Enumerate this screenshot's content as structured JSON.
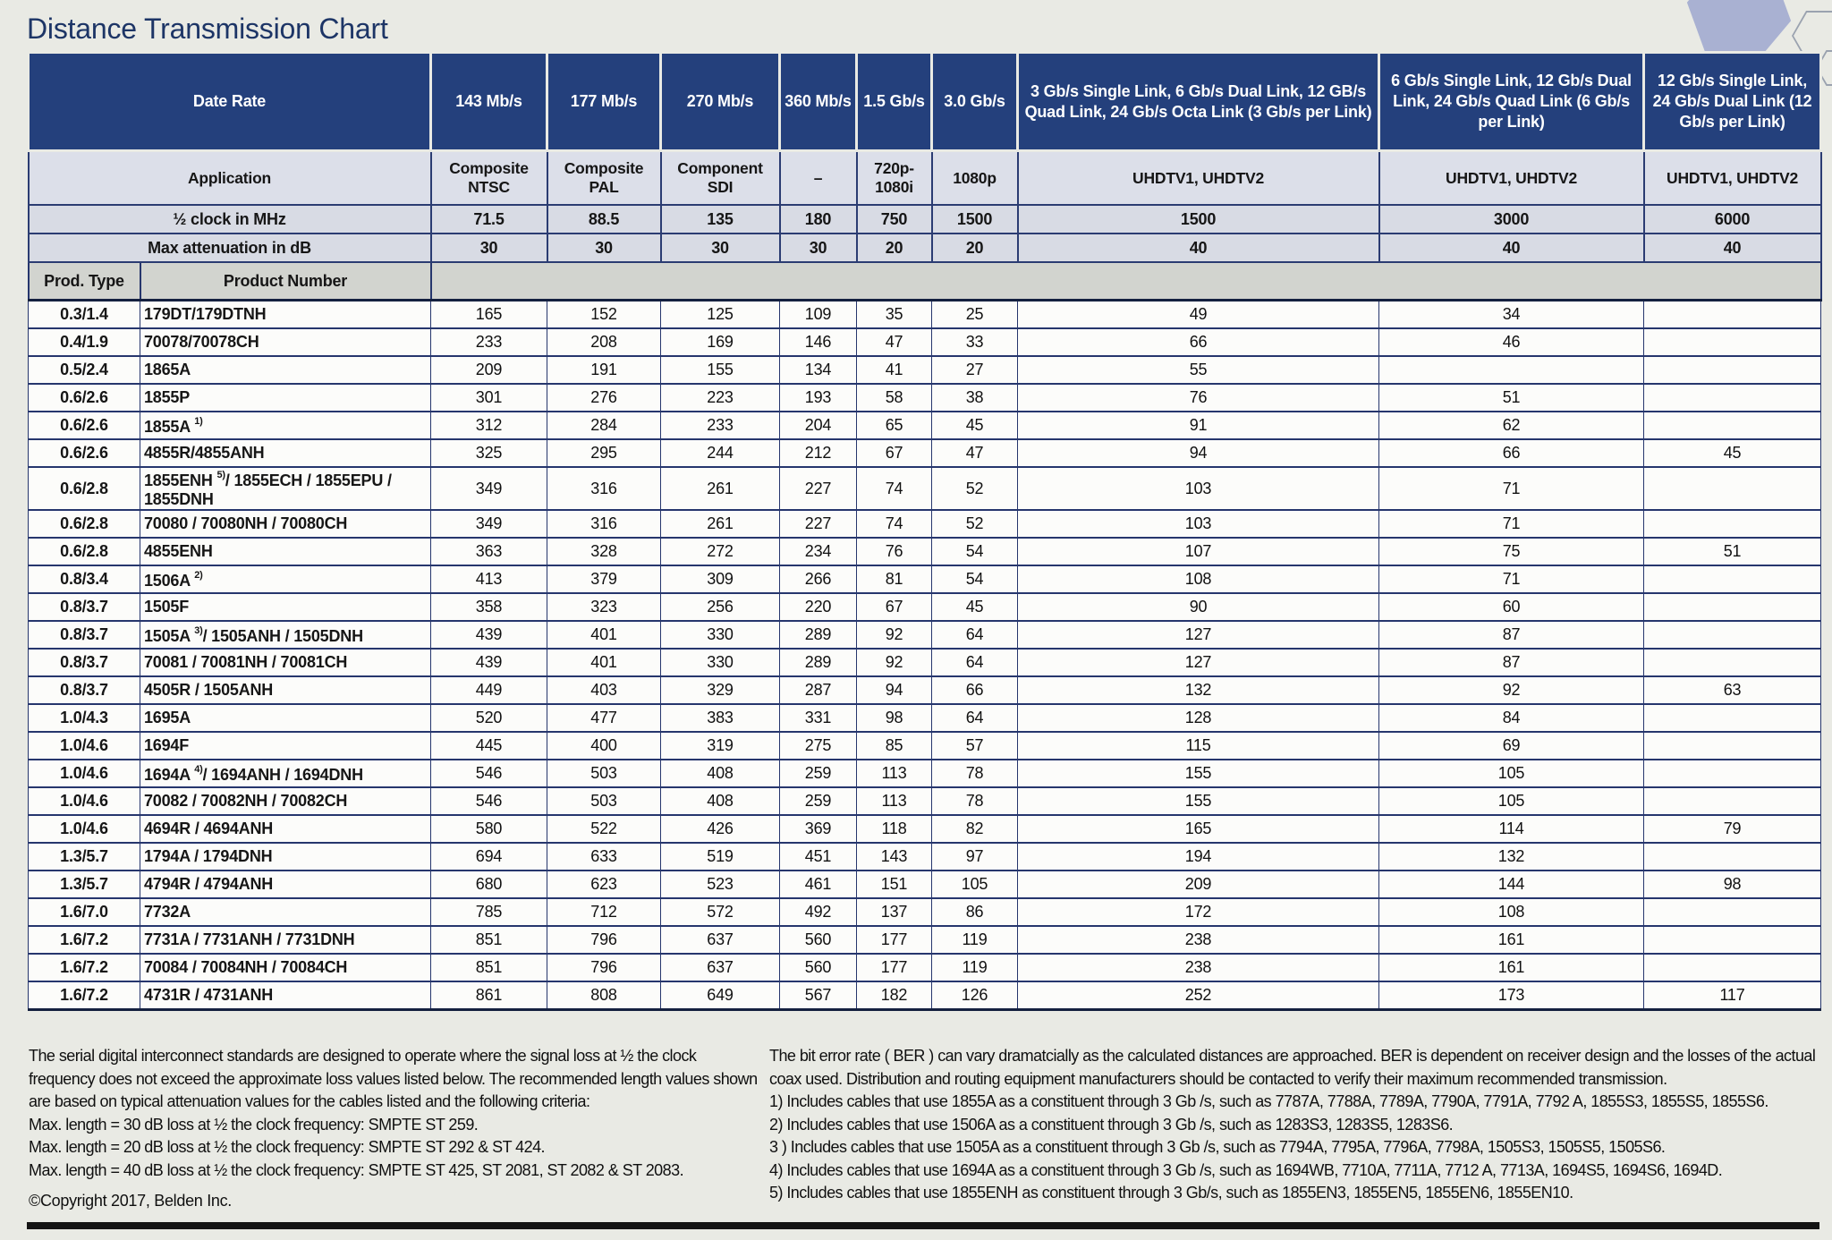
{
  "title": "Distance Transmission Chart",
  "colors": {
    "header_blue": "#24407c",
    "grid_navy": "#26366d",
    "paper": "#e9eae4",
    "app_row_bg": "#dcdfe9",
    "hexagon_fill": "#a9b1d2"
  },
  "table": {
    "header": {
      "data_rate_label": "Date Rate",
      "application_label": "Application",
      "clock_label": "½ clock in MHz",
      "attenuation_label": "Max attenuation in dB",
      "prod_type_label": "Prod. Type",
      "product_number_label": "Product Number",
      "rate_columns": [
        "143 Mb/s",
        "177 Mb/s",
        "270 Mb/s",
        "360 Mb/s",
        "1.5 Gb/s",
        "3.0 Gb/s",
        "3 Gb/s Single Link, 6 Gb/s Dual Link, 12 GB/s Quad Link, 24 Gb/s Octa Link (3 Gb/s per Link)",
        "6 Gb/s Single Link, 12 Gb/s Dual Link, 24 Gb/s Quad Link (6 Gb/s per Link)",
        "12 Gb/s Single Link, 24 Gb/s Dual Link (12 Gb/s per Link)"
      ],
      "applications": [
        "Composite NTSC",
        "Composite PAL",
        "Component SDI",
        "–",
        "720p- 1080i",
        "1080p",
        "UHDTV1, UHDTV2",
        "UHDTV1, UHDTV2",
        "UHDTV1, UHDTV2"
      ],
      "clock_values": [
        "71.5",
        "88.5",
        "135",
        "180",
        "750",
        "1500",
        "1500",
        "3000",
        "6000"
      ],
      "attenuation_values": [
        "30",
        "30",
        "30",
        "30",
        "20",
        "20",
        "40",
        "40",
        "40"
      ]
    },
    "rows": [
      {
        "type": "0.3/1.4",
        "product": "179DT/179DTNH",
        "sup": "",
        "rest": "",
        "values": [
          "165",
          "152",
          "125",
          "109",
          "35",
          "25",
          "49",
          "34",
          ""
        ]
      },
      {
        "type": "0.4/1.9",
        "product": "70078/70078CH",
        "sup": "",
        "rest": "",
        "values": [
          "233",
          "208",
          "169",
          "146",
          "47",
          "33",
          "66",
          "46",
          ""
        ]
      },
      {
        "type": "0.5/2.4",
        "product": "1865A",
        "sup": "",
        "rest": "",
        "values": [
          "209",
          "191",
          "155",
          "134",
          "41",
          "27",
          "55",
          "",
          ""
        ]
      },
      {
        "type": "0.6/2.6",
        "product": "1855P",
        "sup": "",
        "rest": "",
        "values": [
          "301",
          "276",
          "223",
          "193",
          "58",
          "38",
          "76",
          "51",
          ""
        ]
      },
      {
        "type": "0.6/2.6",
        "product": "1855A ",
        "sup": "1)",
        "rest": "",
        "values": [
          "312",
          "284",
          "233",
          "204",
          "65",
          "45",
          "91",
          "62",
          ""
        ]
      },
      {
        "type": "0.6/2.6",
        "product": "4855R/4855ANH",
        "sup": "",
        "rest": "",
        "values": [
          "325",
          "295",
          "244",
          "212",
          "67",
          "47",
          "94",
          "66",
          "45"
        ]
      },
      {
        "type": "0.6/2.8",
        "product": "1855ENH ",
        "sup": "5)",
        "rest": "/ 1855ECH / 1855EPU / 1855DNH",
        "values": [
          "349",
          "316",
          "261",
          "227",
          "74",
          "52",
          "103",
          "71",
          ""
        ]
      },
      {
        "type": "0.6/2.8",
        "product": "70080 / 70080NH / 70080CH",
        "sup": "",
        "rest": "",
        "values": [
          "349",
          "316",
          "261",
          "227",
          "74",
          "52",
          "103",
          "71",
          ""
        ]
      },
      {
        "type": "0.6/2.8",
        "product": "4855ENH",
        "sup": "",
        "rest": "",
        "values": [
          "363",
          "328",
          "272",
          "234",
          "76",
          "54",
          "107",
          "75",
          "51"
        ]
      },
      {
        "type": "0.8/3.4",
        "product": "1506A ",
        "sup": "2)",
        "rest": "",
        "values": [
          "413",
          "379",
          "309",
          "266",
          "81",
          "54",
          "108",
          "71",
          ""
        ]
      },
      {
        "type": "0.8/3.7",
        "product": "1505F",
        "sup": "",
        "rest": "",
        "values": [
          "358",
          "323",
          "256",
          "220",
          "67",
          "45",
          "90",
          "60",
          ""
        ]
      },
      {
        "type": "0.8/3.7",
        "product": "1505A ",
        "sup": "3)",
        "rest": "/ 1505ANH / 1505DNH",
        "values": [
          "439",
          "401",
          "330",
          "289",
          "92",
          "64",
          "127",
          "87",
          ""
        ]
      },
      {
        "type": "0.8/3.7",
        "product": "70081 / 70081NH / 70081CH",
        "sup": "",
        "rest": "",
        "values": [
          "439",
          "401",
          "330",
          "289",
          "92",
          "64",
          "127",
          "87",
          ""
        ]
      },
      {
        "type": "0.8/3.7",
        "product": "4505R / 1505ANH",
        "sup": "",
        "rest": "",
        "values": [
          "449",
          "403",
          "329",
          "287",
          "94",
          "66",
          "132",
          "92",
          "63"
        ]
      },
      {
        "type": "1.0/4.3",
        "product": "1695A",
        "sup": "",
        "rest": "",
        "values": [
          "520",
          "477",
          "383",
          "331",
          "98",
          "64",
          "128",
          "84",
          ""
        ]
      },
      {
        "type": "1.0/4.6",
        "product": "1694F",
        "sup": "",
        "rest": "",
        "values": [
          "445",
          "400",
          "319",
          "275",
          "85",
          "57",
          "115",
          "69",
          ""
        ]
      },
      {
        "type": "1.0/4.6",
        "product": "1694A ",
        "sup": "4)",
        "rest": "/ 1694ANH / 1694DNH",
        "values": [
          "546",
          "503",
          "408",
          "259",
          "113",
          "78",
          "155",
          "105",
          ""
        ]
      },
      {
        "type": "1.0/4.6",
        "product": "70082 / 70082NH / 70082CH",
        "sup": "",
        "rest": "",
        "values": [
          "546",
          "503",
          "408",
          "259",
          "113",
          "78",
          "155",
          "105",
          ""
        ]
      },
      {
        "type": "1.0/4.6",
        "product": "4694R / 4694ANH",
        "sup": "",
        "rest": "",
        "values": [
          "580",
          "522",
          "426",
          "369",
          "118",
          "82",
          "165",
          "114",
          "79"
        ]
      },
      {
        "type": "1.3/5.7",
        "product": "1794A / 1794DNH",
        "sup": "",
        "rest": "",
        "values": [
          "694",
          "633",
          "519",
          "451",
          "143",
          "97",
          "194",
          "132",
          ""
        ]
      },
      {
        "type": "1.3/5.7",
        "product": "4794R / 4794ANH",
        "sup": "",
        "rest": "",
        "values": [
          "680",
          "623",
          "523",
          "461",
          "151",
          "105",
          "209",
          "144",
          "98"
        ]
      },
      {
        "type": "1.6/7.0",
        "product": "7732A",
        "sup": "",
        "rest": "",
        "values": [
          "785",
          "712",
          "572",
          "492",
          "137",
          "86",
          "172",
          "108",
          ""
        ]
      },
      {
        "type": "1.6/7.2",
        "product": "7731A / 7731ANH / 7731DNH",
        "sup": "",
        "rest": "",
        "values": [
          "851",
          "796",
          "637",
          "560",
          "177",
          "119",
          "238",
          "161",
          ""
        ]
      },
      {
        "type": "1.6/7.2",
        "product": "70084 / 70084NH / 70084CH",
        "sup": "",
        "rest": "",
        "values": [
          "851",
          "796",
          "637",
          "560",
          "177",
          "119",
          "238",
          "161",
          ""
        ]
      },
      {
        "type": "1.6/7.2",
        "product": "4731R / 4731ANH",
        "sup": "",
        "rest": "",
        "values": [
          "861",
          "808",
          "649",
          "567",
          "182",
          "126",
          "252",
          "173",
          "117"
        ]
      }
    ]
  },
  "notes_left": {
    "paragraph": "The serial digital interconnect standards are designed to operate where the signal loss at ½ the clock frequency does not exceed the approximate loss values listed below. The recommended length values shown are based on typical attenuation values for the cables listed and the following criteria:",
    "criteria": [
      "Max. length = 30 dB loss at ½ the clock frequency: SMPTE ST 259.",
      "Max. length = 20 dB loss at ½ the clock frequency: SMPTE ST 292 & ST 424.",
      "Max. length = 40 dB loss at ½ the clock frequency: SMPTE ST 425, ST 2081, ST 2082 & ST 2083."
    ],
    "copyright": "©Copyright 2017, Belden Inc."
  },
  "notes_right": {
    "paragraph": "The bit error rate ( BER ) can vary dramatcially as the calculated distances are approached. BER is dependent on receiver design and the losses of the actual coax used. Distribution and routing equipment manufacturers should be contacted to verify their maximum recommended transmission.",
    "footnotes": [
      "1) Includes cables that use 1855A as a constituent through 3 Gb /s, such as 7787A, 7788A, 7789A, 7790A, 7791A, 7792 A, 1855S3, 1855S5, 1855S6.",
      "2) Includes cables that use 1506A as a constituent through 3 Gb /s, such as 1283S3, 1283S5, 1283S6.",
      "3 ) Includes cables that use 1505A as a constituent through 3 Gb /s, such as 7794A, 7795A, 7796A, 7798A, 1505S3, 1505S5, 1505S6.",
      "4) Includes cables that use 1694A as a constituent through 3 Gb /s, such as 1694WB, 7710A, 7711A, 7712 A, 7713A, 1694S5, 1694S6, 1694D.",
      "5) Includes cables that use 1855ENH as constituent through 3 Gb/s, such as 1855EN3, 1855EN5, 1855EN6, 1855EN10."
    ]
  }
}
